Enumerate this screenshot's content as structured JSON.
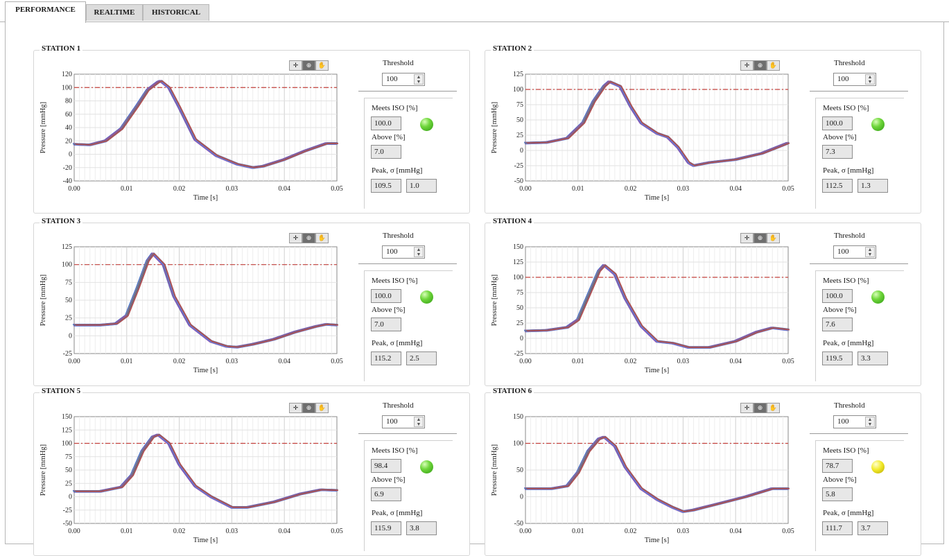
{
  "tabs": [
    {
      "label": "PERFORMANCE",
      "active": true
    },
    {
      "label": "REALTIME",
      "active": false
    },
    {
      "label": "HISTORICAL",
      "active": false
    }
  ],
  "common": {
    "threshold_label": "Threshold",
    "meets_iso_label": "Meets ISO [%]",
    "above_label": "Above [%]",
    "peak_label": "Peak, σ  [mmHg]",
    "palette_icons": [
      "cursor-move-icon",
      "zoom-icon",
      "pan-hand-icon"
    ],
    "threshold_line_color": "#c4403c",
    "led_colors": {
      "green": "#5cc82c",
      "yellow": "#ece121"
    }
  },
  "stations": [
    {
      "title": "STATION 1",
      "threshold": "100",
      "meets_iso": "100.0",
      "above": "7.0",
      "peak": "109.5",
      "sigma": "1.0",
      "led": "green",
      "chart_data": {
        "type": "line",
        "xlabel": "Time [s]",
        "ylabel": "Pressure [mmHg]",
        "xlim": [
          0,
          0.05
        ],
        "ylim": [
          -40,
          120
        ],
        "xticks": [
          "0.00",
          "0.01",
          "0.02",
          "0.03",
          "0.04",
          "0.05"
        ],
        "yticks": [
          "-40",
          "-20",
          "0",
          "20",
          "40",
          "60",
          "80",
          "100",
          "120"
        ],
        "threshold": 100,
        "grid": true,
        "x": [
          0,
          0.003,
          0.006,
          0.009,
          0.012,
          0.014,
          0.016,
          0.0165,
          0.018,
          0.02,
          0.023,
          0.027,
          0.031,
          0.034,
          0.036,
          0.04,
          0.044,
          0.048,
          0.05
        ],
        "series": [
          {
            "values": [
              15,
              14,
              20,
              38,
              72,
              96,
              108,
              109.5,
              100,
              70,
              22,
              -2,
              -15,
              -20,
              -18,
              -8,
              5,
              16,
              16
            ]
          }
        ]
      }
    },
    {
      "title": "STATION 2",
      "threshold": "100",
      "meets_iso": "100.0",
      "above": "7.3",
      "peak": "112.5",
      "sigma": "1.3",
      "led": "green",
      "chart_data": {
        "type": "line",
        "xlabel": "Time [s]",
        "ylabel": "Pressure [mmHg]",
        "xlim": [
          0,
          0.05
        ],
        "ylim": [
          -50,
          125
        ],
        "xticks": [
          "0.00",
          "0.01",
          "0.02",
          "0.03",
          "0.04",
          "0.05"
        ],
        "yticks": [
          "-50",
          "-25",
          "0",
          "25",
          "50",
          "75",
          "100",
          "125"
        ],
        "threshold": 100,
        "grid": true,
        "x": [
          0,
          0.004,
          0.008,
          0.011,
          0.013,
          0.015,
          0.016,
          0.018,
          0.02,
          0.022,
          0.025,
          0.027,
          0.029,
          0.031,
          0.032,
          0.035,
          0.04,
          0.045,
          0.05
        ],
        "series": [
          {
            "values": [
              12,
              13,
              20,
              45,
              80,
              105,
              112.5,
              105,
              72,
              45,
              28,
              22,
              5,
              -20,
              -25,
              -20,
              -15,
              -5,
              12
            ]
          }
        ]
      }
    },
    {
      "title": "STATION 3",
      "threshold": "100",
      "meets_iso": "100.0",
      "above": "7.0",
      "peak": "115.2",
      "sigma": "2.5",
      "led": "green",
      "chart_data": {
        "type": "line",
        "xlabel": "Time [s]",
        "ylabel": "Pressure [mmHg]",
        "xlim": [
          0,
          0.05
        ],
        "ylim": [
          -25,
          125
        ],
        "xticks": [
          "0.00",
          "0.01",
          "0.02",
          "0.03",
          "0.04",
          "0.05"
        ],
        "yticks": [
          "-25",
          "0",
          "25",
          "50",
          "75",
          "100",
          "125"
        ],
        "threshold": 100,
        "grid": true,
        "x": [
          0,
          0.005,
          0.008,
          0.01,
          0.012,
          0.014,
          0.015,
          0.017,
          0.019,
          0.022,
          0.026,
          0.029,
          0.031,
          0.034,
          0.038,
          0.042,
          0.046,
          0.048,
          0.05
        ],
        "series": [
          {
            "values": [
              15,
              15,
              17,
              28,
              65,
              105,
              115.2,
              100,
              55,
              15,
              -8,
              -15,
              -16,
              -12,
              -5,
              5,
              13,
              16,
              15
            ]
          }
        ]
      }
    },
    {
      "title": "STATION 4",
      "threshold": "100",
      "meets_iso": "100.0",
      "above": "7.6",
      "peak": "119.5",
      "sigma": "3.3",
      "led": "green",
      "chart_data": {
        "type": "line",
        "xlabel": "Time [s]",
        "ylabel": "Pressure [mmHg]",
        "xlim": [
          0,
          0.05
        ],
        "ylim": [
          -25,
          150
        ],
        "xticks": [
          "0.00",
          "0.01",
          "0.02",
          "0.03",
          "0.04",
          "0.05"
        ],
        "yticks": [
          "-25",
          "0",
          "25",
          "50",
          "75",
          "100",
          "125",
          "150"
        ],
        "threshold": 100,
        "grid": true,
        "x": [
          0,
          0.004,
          0.008,
          0.01,
          0.012,
          0.014,
          0.015,
          0.017,
          0.019,
          0.022,
          0.025,
          0.028,
          0.031,
          0.035,
          0.04,
          0.044,
          0.047,
          0.05
        ],
        "series": [
          {
            "values": [
              12,
              13,
              18,
              30,
              70,
              110,
              119.5,
              105,
              65,
              20,
              -5,
              -8,
              -15,
              -15,
              -5,
              10,
              17,
              14
            ]
          }
        ]
      }
    },
    {
      "title": "STATION 5",
      "threshold": "100",
      "meets_iso": "98.4",
      "above": "6.9",
      "peak": "115.9",
      "sigma": "3.8",
      "led": "green",
      "chart_data": {
        "type": "line",
        "xlabel": "Time [s]",
        "ylabel": "Pressure [mmHg]",
        "xlim": [
          0,
          0.05
        ],
        "ylim": [
          -50,
          150
        ],
        "xticks": [
          "0.00",
          "0.01",
          "0.02",
          "0.03",
          "0.04",
          "0.05"
        ],
        "yticks": [
          "-50",
          "-25",
          "0",
          "25",
          "50",
          "75",
          "100",
          "125",
          "150"
        ],
        "threshold": 100,
        "grid": true,
        "x": [
          0,
          0.005,
          0.009,
          0.011,
          0.013,
          0.015,
          0.016,
          0.018,
          0.02,
          0.023,
          0.026,
          0.028,
          0.03,
          0.033,
          0.038,
          0.043,
          0.047,
          0.05
        ],
        "series": [
          {
            "values": [
              10,
              10,
              18,
              40,
              85,
              112,
              115.9,
              100,
              60,
              20,
              0,
              -10,
              -20,
              -20,
              -10,
              5,
              13,
              12
            ]
          }
        ]
      }
    },
    {
      "title": "STATION 6",
      "threshold": "100",
      "meets_iso": "78.7",
      "above": "5.8",
      "peak": "111.7",
      "sigma": "3.7",
      "led": "yellow",
      "chart_data": {
        "type": "line",
        "xlabel": "Time [s]",
        "ylabel": "Pressure [mmHg]",
        "xlim": [
          0,
          0.05
        ],
        "ylim": [
          -50,
          150
        ],
        "xticks": [
          "0.00",
          "0.01",
          "0.02",
          "0.03",
          "0.04",
          "0.05"
        ],
        "yticks": [
          "-50",
          "0",
          "50",
          "100",
          "150"
        ],
        "threshold": 100,
        "grid": true,
        "x": [
          0,
          0.005,
          0.008,
          0.01,
          0.012,
          0.014,
          0.015,
          0.017,
          0.019,
          0.022,
          0.025,
          0.028,
          0.03,
          0.032,
          0.036,
          0.042,
          0.047,
          0.05
        ],
        "series": [
          {
            "values": [
              15,
              15,
              20,
              45,
              85,
              108,
              111.7,
              95,
              55,
              15,
              -5,
              -20,
              -28,
              -25,
              -15,
              0,
              15,
              15
            ]
          }
        ]
      }
    }
  ]
}
